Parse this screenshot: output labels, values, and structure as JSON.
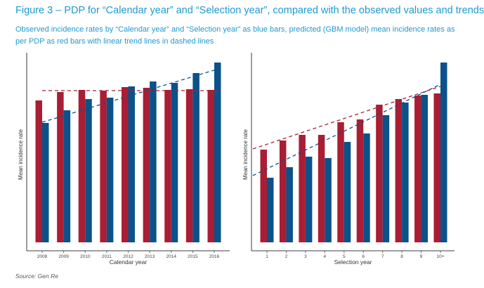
{
  "title": "Figure 3 – PDP for “Calendar year” and “Selection year”, compared with the observed values and trends",
  "subtitle": "Observed incidence rates by “Calendar year” and “Selection year” as blue bars, predicted (GBM model) mean incidence rates as per PDP as red bars with linear trend lines in dashed lines",
  "source": "Source: Gen Re",
  "colors": {
    "predicted": "#a91e34",
    "observed": "#0b528a",
    "title": "#1e9ad2"
  },
  "chart_data": [
    {
      "type": "bar",
      "xlabel": "Calendar year",
      "ylabel": "Mean incidence rate",
      "ylim": [
        0,
        270
      ],
      "categories": [
        "2008",
        "2009",
        "2010",
        "2011",
        "2012",
        "2013",
        "2014",
        "2015",
        "2016"
      ],
      "series": [
        {
          "name": "Predicted (PDP)",
          "values": [
            202,
            214,
            217,
            216,
            221,
            220,
            217,
            218,
            217
          ],
          "trend": [
            216,
            216
          ]
        },
        {
          "name": "Observed",
          "values": [
            170,
            188,
            204,
            206,
            222,
            229,
            227,
            241,
            256
          ],
          "trend": [
            171,
            248
          ]
        }
      ]
    },
    {
      "type": "bar",
      "xlabel": "Selection year",
      "ylabel": "Mean incidence rate",
      "ylim": [
        0,
        270
      ],
      "categories": [
        "1",
        "2",
        "3",
        "4",
        "5",
        "6",
        "7",
        "8",
        "9",
        "10+"
      ],
      "series": [
        {
          "name": "Predicted (PDP)",
          "values": [
            132,
            145,
            153,
            153,
            171,
            175,
            196,
            204,
            209,
            212
          ],
          "trend": [
            133,
            222
          ]
        },
        {
          "name": "Observed",
          "values": [
            92,
            107,
            122,
            120,
            143,
            155,
            181,
            199,
            210,
            256
          ],
          "trend": [
            95,
            225
          ]
        }
      ]
    }
  ]
}
